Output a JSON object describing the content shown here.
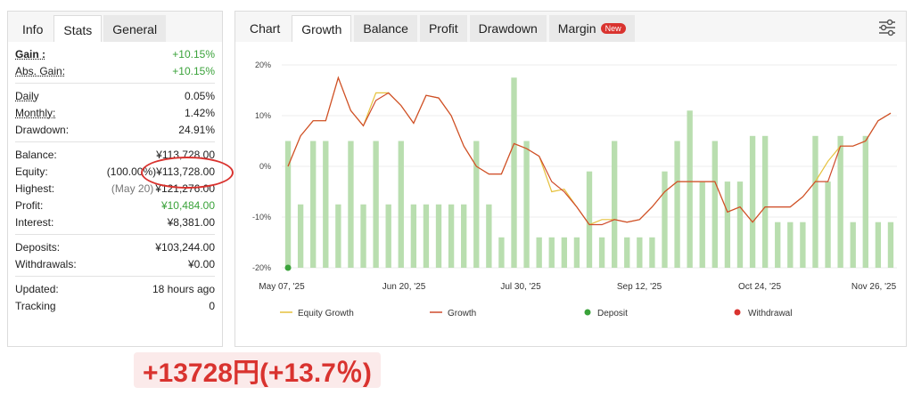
{
  "left": {
    "tabs": [
      "Info",
      "Stats",
      "General"
    ],
    "stats": {
      "gain": {
        "label": "Gain :",
        "value": "+10.15%"
      },
      "abs_gain": {
        "label": "Abs. Gain:",
        "value": "+10.15%"
      },
      "daily": {
        "label": "Daily",
        "value": "0.05%"
      },
      "monthly": {
        "label": "Monthly:",
        "value": "1.42%"
      },
      "drawdown": {
        "label": "Drawdown:",
        "value": "24.91%"
      },
      "balance": {
        "label": "Balance:",
        "value": "¥113,728.00"
      },
      "equity": {
        "label": "Equity:",
        "prefix": "(100.00%)",
        "value": "¥113,728.00"
      },
      "highest": {
        "label": "Highest:",
        "prefix": "(May 20)",
        "value": "¥121,276.00"
      },
      "profit": {
        "label": "Profit:",
        "value": "¥10,484.00"
      },
      "interest": {
        "label": "Interest:",
        "value": "¥8,381.00"
      },
      "deposits": {
        "label": "Deposits:",
        "value": "¥103,244.00"
      },
      "withdrawals": {
        "label": "Withdrawals:",
        "value": "¥0.00"
      },
      "updated": {
        "label": "Updated:",
        "value": "18 hours ago"
      },
      "tracking": {
        "label": "Tracking",
        "value": "0"
      }
    }
  },
  "right": {
    "tabs": [
      "Chart",
      "Growth",
      "Balance",
      "Profit",
      "Drawdown",
      "Margin"
    ],
    "badge": "New"
  },
  "result_text": "+13728円(+13.7％)",
  "chart_data": {
    "type": "bar",
    "ylim": [
      -20,
      20
    ],
    "y_ticks": [
      "20%",
      "10%",
      "0%",
      "-10%",
      "-20%"
    ],
    "x_ticks": [
      "May 07, '25",
      "Jun 20, '25",
      "Jul 30, '25",
      "Sep 12, '25",
      "Oct 24, '25",
      "Nov 26, '25"
    ],
    "bars": [
      5,
      -7.5,
      5,
      5,
      -7.5,
      5,
      -7.5,
      5,
      -7.5,
      5,
      -7.5,
      -7.5,
      -7.5,
      -7.5,
      -7.5,
      5,
      -7.5,
      -14,
      17.5,
      5,
      -14,
      -14,
      -14,
      -14,
      -1,
      -14,
      5,
      -14,
      -14,
      -14,
      -1,
      5,
      11,
      -3,
      5,
      -3,
      -3,
      6,
      6,
      -11,
      -11,
      -11,
      6,
      -3,
      6,
      -11,
      6,
      -11,
      -11
    ],
    "equity_growth": [
      0,
      6,
      9,
      9,
      17.5,
      11,
      8,
      14.5,
      14.5,
      12,
      8.5,
      14,
      13.5,
      10,
      4,
      0,
      -1.5,
      -1.5,
      4.5,
      3.5,
      2,
      -5,
      -4.5,
      -8,
      -11.5,
      -10.5,
      -10.5,
      -11,
      -10.5,
      -8,
      -5,
      -3,
      -3,
      -3,
      -3,
      -9,
      -8,
      -11,
      -8,
      -8,
      -8,
      -6,
      -3,
      1,
      4,
      4,
      5,
      9,
      10.5
    ],
    "growth": [
      0,
      6,
      9,
      9,
      17.5,
      11,
      8,
      13,
      14.5,
      12,
      8.5,
      14,
      13.5,
      10,
      4,
      0,
      -1.5,
      -1.5,
      4.5,
      3.5,
      2,
      -3,
      -5,
      -8,
      -11.5,
      -11.5,
      -10.5,
      -11,
      -10.5,
      -8,
      -5,
      -3,
      -3,
      -3,
      -3,
      -9,
      -8,
      -11,
      -8,
      -8,
      -8,
      -6,
      -3,
      -3,
      4,
      4,
      5,
      9,
      10.5
    ],
    "deposit_marker": {
      "x": 0,
      "y": -20
    },
    "legend": [
      "Equity Growth",
      "Growth",
      "Deposit",
      "Withdrawal"
    ],
    "colors": {
      "bars": "#b9deaf",
      "equity": "#e6c13c",
      "growth": "#cf4b2c",
      "deposit": "#3aa23a",
      "withdrawal": "#d9332f"
    }
  }
}
